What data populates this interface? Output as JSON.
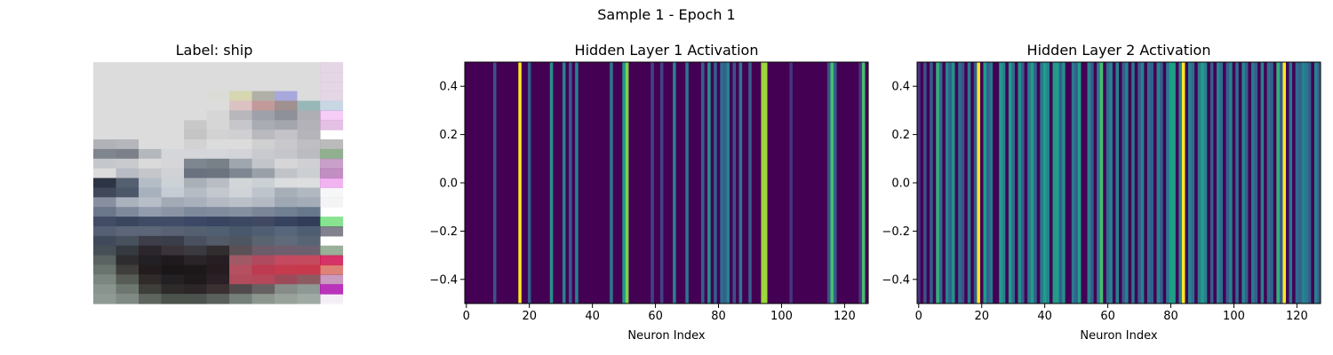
{
  "figure": {
    "suptitle": "Sample 1 - Epoch 1"
  },
  "image_panel": {
    "title": "Label: ship",
    "grid": [
      "dcdcdcdcdcdcdcdcdcdcdcdcdcdcdcdcdcdcdcdcdcdcdcdcdcdcdcdcdcdcdcdc",
      "dcdcdcdcdcdcdcdcdcdcdcdcdcdcdcdcdcdcdcdcdcdcdcdcdcdcdcdcdcdcdcdc",
      "dcdcdcdcdcdcdcdcdcdcdcdcdcdcdcdcdcdcdcdcdcdcdcdcdcdcdcdcdcdcdcdc",
      "dcdcdcdcdcdcdcdcdcdcdcdcdcdcdcdcdcd6d6d6b0b0b0a8a8a8dcdcdcdcdcdc",
      "dcdcdcdcdcdcdcdcdcdcdcdcdcdcdcdcdcdcdcc2c2c29a9aa0909098b8b8bcdc",
      "dcdcdcdcdcdcdcdcdcdcdcdcdcdcdcd6d6d6b8b8bc9fa1aa8e9099aeaeb4d4d4",
      "dcdcdcdcdcdcdcdcdcdcdcdcc8c8c8d6d6d6c7c7cbaaacb4a4a6aeb2b2b8c8c8",
      "dcdcdcdcdcdcdcdcdcdcdcdcc4c4c4d2d2d2d0d0d2b9b9bec4c4c8b4b4bac0c0",
      "b0b2b8b4b6bcdcdcdcdcdcdcd2d2d2dcdcdcdcdcdcd0d0d0c9c9cdbfbfc3aaac",
      "80868e7c8088b4b8bcd4d6dad4d6dad4d6dad2d4d8c8cad0c4c6ccbabcc28a8e",
      "c4c8ccc8cacedadadad6d6d87e8690788088a0a6aec2c6cad6d6d8d0d0d4b8bc",
      "dcdcdcb8bcc4c4c6cad0d2d66a72806c74807e86929aa0a8c0c4c8cccfd2a6ab",
      "2d3444546070b4bcc6ccd2d6aab0b8b8bec4d2d6d8cad0d4dadcdedcdee0d4d6",
      "40485a4c586aa7b1bdc6ccd4b6bcc4c2c8ced0d4d8bec4cca6aeb8b2b8c0bcc2",
      "8890a0aab2beb8bec8a2aab6a8b0bcb4bac4bac0c8b4bac49ea8b4a4acb8aab2",
      "6a768a7e8a9c929cac8a94a47e8a9c808c9e8490a07a869870809268788c7080",
      "424c643a465e404c66404c683c48663844603c486240486236425e303c582c38",
      "5660745c66785c667858627454607050607249586c4f5e7257667a4e5e72445a",
      "404a5a48525e3e3e4a3a3e4a4a5060525a684e56625a6470606a7a5864745860",
      "464e56343a402a262c3a343a3a3a40312c2e5a50566d5c6a6e5e6e6c6070686a",
      "5a62622e2c2e2220241e1a1e2a2428261e22a05a66b04a5ec44a60c64a5ec04c",
      "6a746e403e3c221c1e1a16181c181a261c20b45060be3a50c63a4ec8384cc43a",
      "7c8680585c56302a2a2220221e1a1c2a2026b04c5cb4485a9c4a5a8e5a629488",
      "8a948e6e76703e3e3a2e2a2a2c26283a3032504a4c666062868c888e9894a0ac",
      "909a94808a845e645e4c524c4c524e5a605c76807a8c968e98a29aa0aaa4a8b2"
    ]
  },
  "chart_data": [
    {
      "type": "heatmap",
      "title": "Hidden Layer 1 Activation",
      "xlabel": "Neuron Index",
      "ylabel": "",
      "colormap": "viridis",
      "xlim": [
        -0.5,
        127.5
      ],
      "ylim": [
        0.5,
        -0.5
      ],
      "xticks": [
        0,
        20,
        40,
        60,
        80,
        100,
        120
      ],
      "yticks": [
        -0.4,
        -0.2,
        0.0,
        0.2,
        0.4
      ],
      "ytick_labels": [
        "−0.4",
        "−0.2",
        "0.0",
        "0.2",
        "0.4"
      ],
      "values": [
        0,
        0,
        0,
        0,
        0,
        0,
        0,
        0,
        0,
        0.25,
        0,
        0,
        0,
        0,
        0,
        0,
        0,
        1,
        0,
        0,
        0.3,
        0,
        0,
        0,
        0,
        0,
        0,
        0.5,
        0,
        0,
        0,
        0.45,
        0,
        0.3,
        0,
        0.45,
        0,
        0,
        0,
        0,
        0,
        0,
        0,
        0,
        0,
        0,
        0.4,
        0,
        0,
        0,
        0.55,
        0.8,
        0,
        0,
        0,
        0,
        0,
        0,
        0,
        0.2,
        0,
        0,
        0.2,
        0,
        0,
        0,
        0.45,
        0,
        0,
        0,
        0.4,
        0,
        0,
        0,
        0,
        0.3,
        0,
        0.5,
        0,
        0.3,
        0,
        0.35,
        0.3,
        0.45,
        0,
        0.25,
        0,
        0.4,
        0,
        0,
        0.3,
        0,
        0,
        0,
        0.85,
        0.85,
        0,
        0,
        0,
        0,
        0,
        0,
        0,
        0.15,
        0,
        0,
        0,
        0,
        0,
        0,
        0,
        0,
        0,
        0,
        0,
        0.25,
        0.7,
        0.3,
        0,
        0,
        0,
        0,
        0,
        0,
        0,
        0.15,
        0.7,
        0
      ],
      "colorbar": false
    },
    {
      "type": "heatmap",
      "title": "Hidden Layer 2 Activation",
      "xlabel": "Neuron Index",
      "ylabel": "",
      "colormap": "viridis",
      "xlim": [
        -0.5,
        127.5
      ],
      "ylim": [
        0.5,
        -0.5
      ],
      "xticks": [
        0,
        20,
        40,
        60,
        80,
        100,
        120
      ],
      "yticks": [
        -0.4,
        -0.2,
        0.0,
        0.2,
        0.4
      ],
      "ytick_labels": [
        "−0.4",
        "−0.2",
        "0.0",
        "0.2",
        "0.4"
      ],
      "values": [
        0.15,
        0,
        0.25,
        0,
        0.3,
        0,
        0.65,
        0.35,
        0,
        0.45,
        0.3,
        0.5,
        0,
        0.35,
        0.25,
        0,
        0.4,
        0,
        0.3,
        1,
        0,
        0.55,
        0.3,
        0.4,
        0,
        0,
        0.55,
        0.45,
        0,
        0.55,
        0.35,
        0,
        0.5,
        0.3,
        0,
        0.4,
        0.55,
        0.3,
        0,
        0.4,
        0.55,
        0.45,
        0,
        0.55,
        0.55,
        0.3,
        0.5,
        0,
        0,
        0.4,
        0.3,
        0.55,
        0,
        0,
        0.45,
        0.3,
        0,
        0.4,
        0.7,
        0,
        0.35,
        0.45,
        0,
        0.45,
        0,
        0.3,
        0.45,
        0,
        0.4,
        0,
        0.3,
        0.45,
        0,
        0.35,
        0.3,
        0,
        0.45,
        0.3,
        0,
        0.4,
        0.55,
        0.55,
        0,
        0.45,
        1,
        0,
        0.45,
        0.35,
        0,
        0.4,
        0.55,
        0.45,
        0,
        0.3,
        0,
        0.45,
        0.35,
        0,
        0.3,
        0.45,
        0,
        0.35,
        0,
        0.45,
        0.3,
        0,
        0.4,
        0.3,
        0,
        0.45,
        0,
        0.35,
        0.3,
        0,
        0.65,
        0.3,
        1,
        0,
        0.4,
        0,
        0.35,
        0.3,
        0.45,
        0.4,
        0.3,
        0,
        0.45,
        0.3
      ]
    }
  ]
}
